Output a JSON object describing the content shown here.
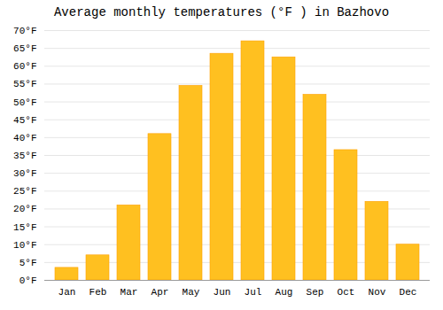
{
  "chart_data": {
    "type": "bar",
    "title": "Average monthly temperatures (°F ) in Bazhovo",
    "categories": [
      "Jan",
      "Feb",
      "Mar",
      "Apr",
      "May",
      "Jun",
      "Jul",
      "Aug",
      "Sep",
      "Oct",
      "Nov",
      "Dec"
    ],
    "values": [
      3.5,
      7.0,
      21.0,
      41.0,
      54.5,
      63.5,
      67.0,
      62.5,
      52.0,
      36.5,
      22.0,
      10.0
    ],
    "color": "#FFC020",
    "ylim": [
      0,
      70
    ],
    "yticks": [
      {
        "value": 0,
        "label": "0°F"
      },
      {
        "value": 5,
        "label": "5°F"
      },
      {
        "value": 10,
        "label": "10°F"
      },
      {
        "value": 15,
        "label": "15°F"
      },
      {
        "value": 20,
        "label": "20°F"
      },
      {
        "value": 25,
        "label": "25°F"
      },
      {
        "value": 30,
        "label": "30°F"
      },
      {
        "value": 35,
        "label": "35°F"
      },
      {
        "value": 40,
        "label": "40°F"
      },
      {
        "value": 45,
        "label": "45°F"
      },
      {
        "value": 50,
        "label": "50°F"
      },
      {
        "value": 55,
        "label": "55°F"
      },
      {
        "value": 60,
        "label": "60°F"
      },
      {
        "value": 65,
        "label": "65°F"
      },
      {
        "value": 70,
        "label": "70°F"
      }
    ],
    "grid": true
  }
}
